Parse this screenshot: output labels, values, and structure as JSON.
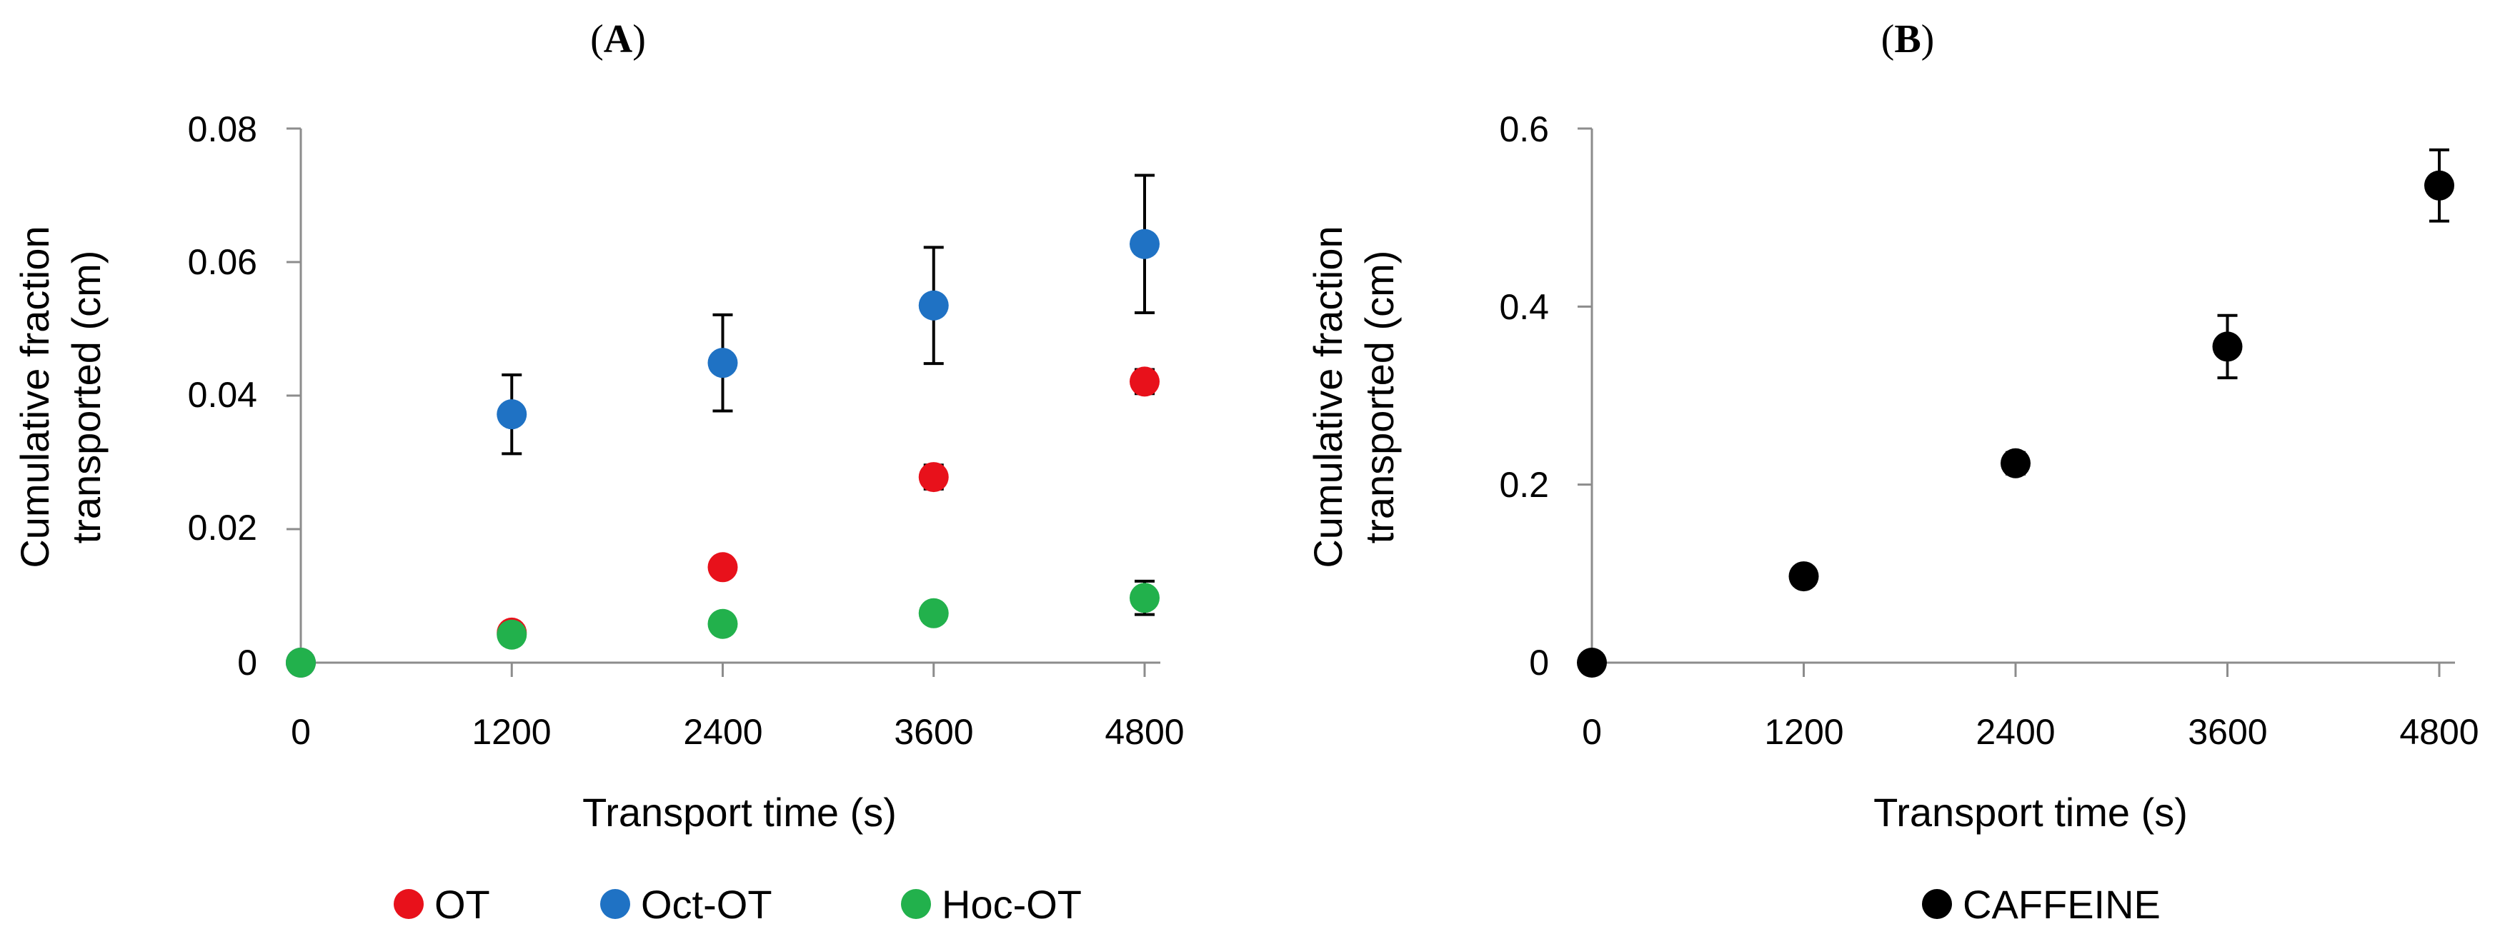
{
  "chart_data": [
    {
      "type": "scatter",
      "panel_label_open": "(",
      "panel_label_letter": "A",
      "panel_label_close": ")",
      "xlabel": "Transport time (s)",
      "ylabel_line1": "Cumulative fraction",
      "ylabel_line2": "transported (cm)",
      "xlim": [
        0,
        4800
      ],
      "ylim": [
        0,
        0.08
      ],
      "x_ticks": [
        0,
        1200,
        2400,
        3600,
        4800
      ],
      "x_tick_labels": [
        "0",
        "1200",
        "2400",
        "3600",
        "4800"
      ],
      "y_ticks": [
        0,
        0.02,
        0.04,
        0.06,
        0.08
      ],
      "y_tick_labels": [
        "0",
        "0.02",
        "0.04",
        "0.06",
        "0.08"
      ],
      "legend_position": "bottom",
      "series": [
        {
          "name": "OT",
          "color": "#e8111b",
          "x": [
            0,
            1200,
            2400,
            3600,
            4800
          ],
          "y": [
            0,
            0.0045,
            0.0143,
            0.0278,
            0.0421
          ],
          "err": [
            0,
            0,
            0,
            0.0018,
            0.0018
          ]
        },
        {
          "name": "Oct-OT",
          "color": "#1f72c4",
          "x": [
            0,
            1200,
            2400,
            3600,
            4800
          ],
          "y": [
            0,
            0.0372,
            0.0449,
            0.0535,
            0.0627
          ],
          "err": [
            0,
            0.0059,
            0.0072,
            0.0087,
            0.0103
          ]
        },
        {
          "name": "Hoc-OT",
          "color": "#22b14c",
          "x": [
            0,
            1200,
            2400,
            3600,
            4800
          ],
          "y": [
            0,
            0.0042,
            0.0058,
            0.0074,
            0.0097
          ],
          "err": [
            0,
            0,
            0,
            0.0012,
            0.0025
          ]
        }
      ]
    },
    {
      "type": "scatter",
      "panel_label_open": "(",
      "panel_label_letter": "B",
      "panel_label_close": ")",
      "xlabel": "Transport time (s)",
      "ylabel_line1": "Cumulative fraction",
      "ylabel_line2": "transported (cm)",
      "xlim": [
        0,
        4800
      ],
      "ylim": [
        0,
        0.6
      ],
      "x_ticks": [
        0,
        1200,
        2400,
        3600,
        4800
      ],
      "x_tick_labels": [
        "0",
        "1200",
        "2400",
        "3600",
        "4800"
      ],
      "y_ticks": [
        0,
        0.2,
        0.4,
        0.6
      ],
      "y_tick_labels": [
        "0",
        "0.2",
        "0.4",
        "0.6"
      ],
      "legend_position": "bottom",
      "series": [
        {
          "name": "CAFFEINE",
          "color": "#000000",
          "x": [
            0,
            1200,
            2400,
            3600,
            4800
          ],
          "y": [
            0,
            0.097,
            0.224,
            0.355,
            0.536
          ],
          "err": [
            0,
            0,
            0.012,
            0.035,
            0.04
          ]
        }
      ]
    }
  ]
}
